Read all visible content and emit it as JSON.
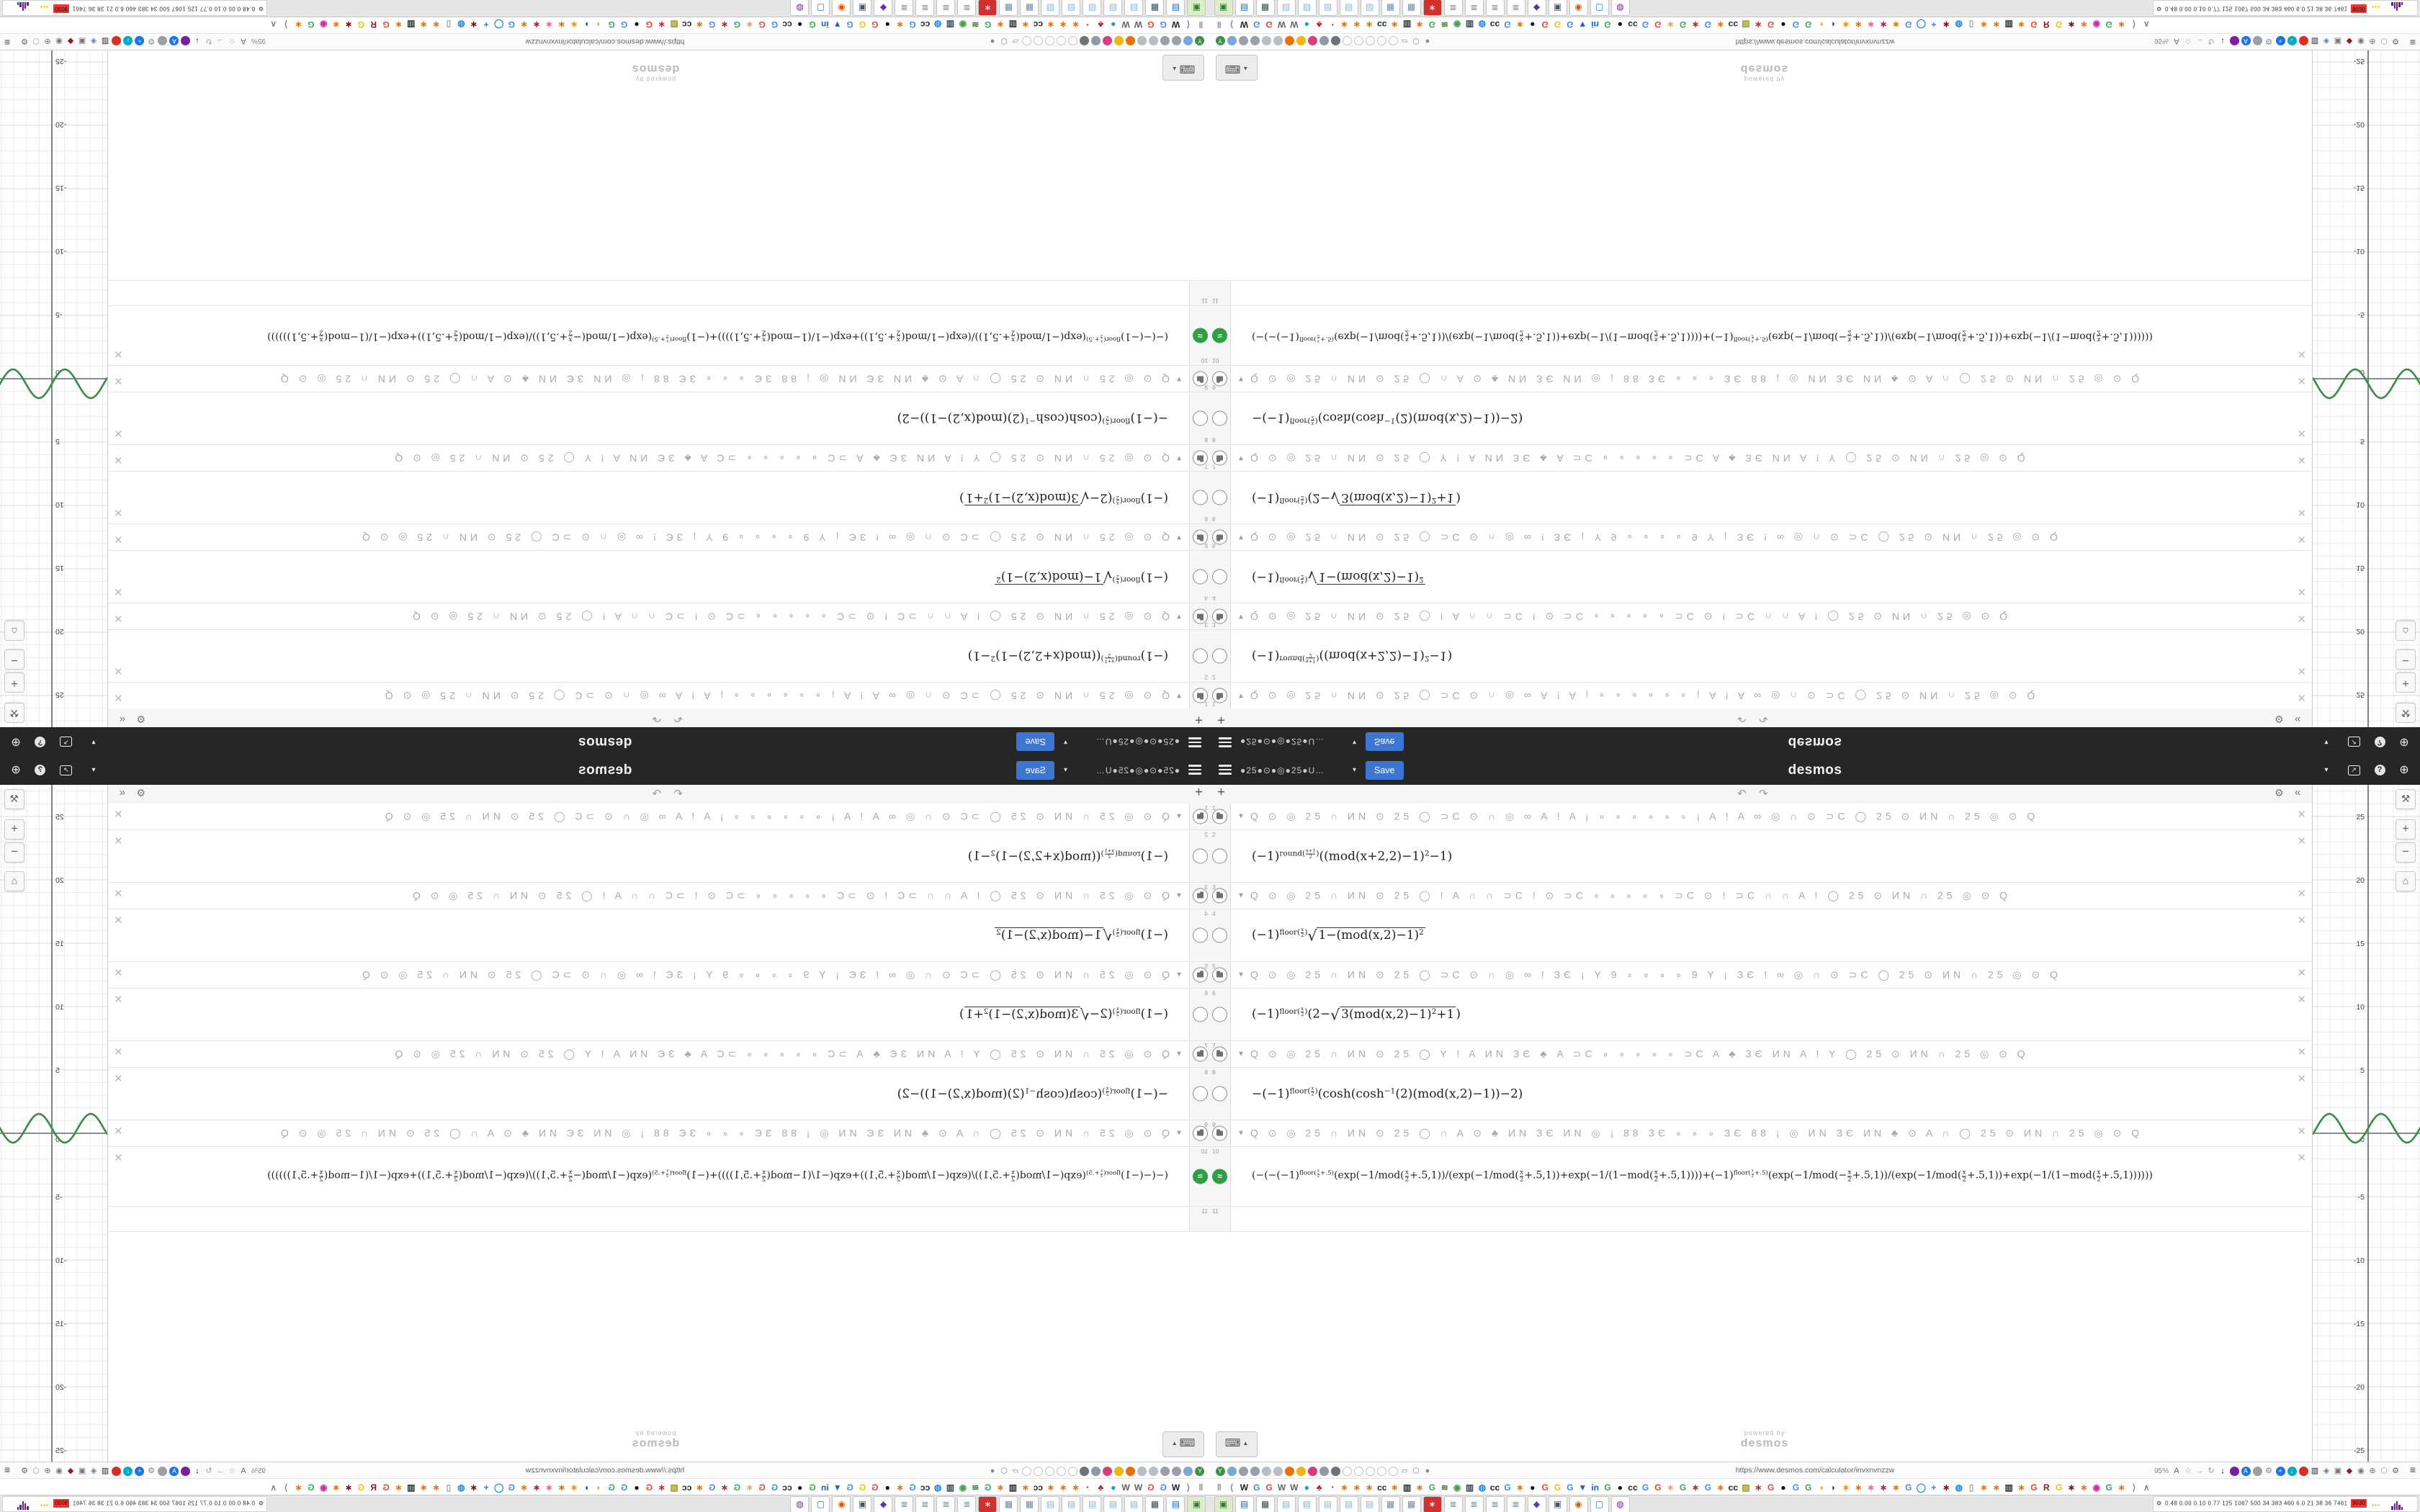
{
  "header": {
    "title": "●25●⊙●◎●25●U…",
    "save_label": "Save",
    "logo": "desmos",
    "caret": "▾",
    "share_glyph": "↗",
    "help_glyph": "?",
    "globe_glyph": "⊕"
  },
  "toolbar": {
    "add_label": "+",
    "undo_label": "↶",
    "redo_label": "↷",
    "gear_label": "⚙",
    "collapse_label": "«"
  },
  "rows": [
    {
      "n": "1",
      "type": "folder",
      "text": "Q ⊙ ◎ 25 ∩ ИN ⊙ 25 ◯ ⊃C ⊙ ∩ ◎ ∞ A ! A ¡ ∘ ∘ ∘ ∘ ∘ ∘ ¡ A ! A ∞ ◎ ∩ ⊙ ⊃C ◯ 25 ⊙ ИN ∩ 25 ◎ ⊙ Q"
    },
    {
      "n": "2",
      "type": "math",
      "tokens": [
        "(−1)",
        {
          "sup": [
            "round(",
            {
              "frac": [
                "x+1",
                "2"
              ]
            },
            ")"
          ]
        },
        "((mod(x+2,2)−1)",
        {
          "sup": [
            "2"
          ]
        },
        "−1)"
      ]
    },
    {
      "n": "3",
      "type": "folder",
      "text": "Q ⊙ ◎ 25 ∩ ИN ⊙ 25 ◯ ! A ∩ ∩ ⊃C ! ⊙ ⊃C ∘ ∘ ∘ ∘ ∘ ⊃C ⊙ ! ⊃C ∩ ∩ A ! ◯ 25 ⊙ ИN ∩ 25 ◎ ⊙ Q"
    },
    {
      "n": "4",
      "type": "math",
      "tokens": [
        "(−1)",
        {
          "sup": [
            "floor(",
            {
              "frac": [
                "x",
                "2"
              ]
            },
            ")"
          ]
        },
        {
          "sqrt": [
            "1−(mod(x,2)−1)",
            {
              "sup": [
                "2"
              ]
            }
          ]
        }
      ]
    },
    {
      "n": "5",
      "type": "folder",
      "text": "Q ⊙ ◎ 25 ∩ ИN ⊙ 25 ◯ ⊃C ⊙ ∩ ◎ ∞ ! ЗЄ ¡ Y 9 ∘ ∘ ∘ ∘ 9 Y ¡ ЗЄ ! ∞ ◎ ∩ ⊙ ⊃C ◯ 25 ⊙ ИN ∩ 25 ◎ ⊙ Q"
    },
    {
      "n": "6",
      "type": "math",
      "tokens": [
        "(−1)",
        {
          "sup": [
            "floor(",
            {
              "frac": [
                "x",
                "2"
              ]
            },
            ")"
          ]
        },
        "(2−",
        {
          "sqrt": [
            "3(mod(x,2)−1)",
            {
              "sup": [
                "2"
              ]
            },
            "+1"
          ]
        },
        ")"
      ]
    },
    {
      "n": "7",
      "type": "folder",
      "text": "Q ⊙ ◎ 25 ∩ ИN ⊙ 25 ◯ Y ! A ИN ЗЄ ♣ A ⊃C ∘ ∘ ∘ ∘ ∘ ⊃C A ♣ ЗЄ ИN A ! Y ◯ 25 ⊙ ИN ∩ 25 ◎ ⊙ Q"
    },
    {
      "n": "8",
      "type": "math",
      "tokens": [
        "−(−1)",
        {
          "sup": [
            "floor(",
            {
              "frac": [
                "x",
                "2"
              ]
            },
            ")"
          ]
        },
        "(cosh(cosh",
        {
          "sup": [
            "−1"
          ]
        },
        "(2)(mod(x,2)−1))−2)"
      ]
    },
    {
      "n": "9",
      "type": "folder",
      "text": "Q ⊙ ◎ 25 ∩ ИN ⊙ 25 ◯ ∩ A ⊙ ♣ ИN ЗЄ ИN ◎ ¡ 88 ЗЄ ∘ ∘ ∘ ЗЄ 88 ¡ ◎ ИN ЗЄ ИN ♣ ⊙ A ∩ ◯ 25 ⊙ ИN ∩ 25 ◎ ⊙ Q"
    },
    {
      "n": "10",
      "type": "math",
      "size": "lg",
      "icon": "wave",
      "wave_glyph": "≈",
      "tokens": [
        "(−(−(−1)",
        {
          "sup": [
            "floor(",
            {
              "frac": [
                "x",
                "2"
              ]
            },
            "+.5)"
          ]
        },
        "(exp(−1/mod(",
        {
          "frac": [
            "x",
            "2"
          ]
        },
        "+.5,1))/(exp(−1/mod(",
        {
          "frac": [
            "x",
            "2"
          ]
        },
        "+.5,1))+exp(−1/(1−mod(",
        {
          "frac": [
            "x",
            "2"
          ]
        },
        "+.5,1))))+(−1)",
        {
          "sup": [
            "floor(",
            {
              "frac": [
                "x",
                "2"
              ]
            },
            "+.5)"
          ]
        },
        "(exp(−1/mod(−",
        {
          "frac": [
            "x",
            "2"
          ]
        },
        "+.5,1))/(exp(−1/mod(",
        {
          "frac": [
            "x",
            "2"
          ]
        },
        "+.5,1))+exp(−1/(1−mod(",
        {
          "frac": [
            "x",
            "2"
          ]
        },
        "+.5,1))))))"
      ]
    },
    {
      "n": "11",
      "type": "empty"
    }
  ],
  "delete_glyph": "✕",
  "keypad": {
    "icon": "⌨",
    "caret": "▲"
  },
  "watermark": {
    "line1": "powered by",
    "line2": "desmos"
  },
  "graph": {
    "y_labels": [
      "25",
      "20",
      "15",
      "10",
      "5",
      "0",
      "-5",
      "-10",
      "-15",
      "-20",
      "-25"
    ],
    "curve_color": "#388c46",
    "buttons": {
      "wrench": "⚒",
      "zoom_in": "+",
      "zoom_out": "−",
      "home": "⌂"
    }
  },
  "browser": {
    "url": "https://www.desmos.com/calculator/invxnvnzzw",
    "zoom_label": "95%",
    "menu_glyph": "≡",
    "left_icons": [
      {
        "g": "Y",
        "c": "#3f8f4a"
      },
      {
        "g": "",
        "c": "#7aa9d8"
      },
      {
        "g": "",
        "c": "#9aa0a6"
      },
      {
        "g": "",
        "c": "#9aa0a6"
      },
      {
        "g": "",
        "c": "#b9bec4"
      },
      {
        "g": "",
        "c": "#b9bec4"
      },
      {
        "g": "",
        "c": "#e8710a"
      },
      {
        "g": "",
        "c": "#f2b60d"
      },
      {
        "g": "",
        "c": "#d93d7b"
      },
      {
        "g": "",
        "c": "#8f9aa6"
      },
      {
        "g": "",
        "c": "#6d7378"
      }
    ],
    "tab_placeholders": [
      "",
      "",
      "",
      "",
      ""
    ],
    "badges": [
      {
        "g": "▱",
        "c": "#8a8a8a"
      },
      {
        "g": "⬡",
        "c": "#8a8a8a"
      },
      {
        "g": "●",
        "c": "#8a8a8a"
      }
    ],
    "right_icons": [
      {
        "g": "A",
        "c": "#5f6368",
        "bg": "none"
      },
      {
        "g": "☆",
        "c": "#9aa0a6",
        "bg": "none"
      },
      {
        "g": "→",
        "c": "#9aa0a6",
        "bg": "none"
      },
      {
        "g": "↻",
        "c": "#9aa0a6",
        "bg": "none"
      },
      {
        "g": "↓",
        "c": "#202124",
        "bg": "none"
      },
      {
        "g": "",
        "c": "#fff",
        "bg": "#7b1fa2"
      },
      {
        "g": "A",
        "c": "#fff",
        "bg": "#1a73e8"
      },
      {
        "g": "",
        "c": "#fff",
        "bg": "#9aa0a6"
      },
      {
        "g": "⚙",
        "c": "#80868b",
        "bg": "none"
      },
      {
        "g": "+",
        "c": "#fff",
        "bg": "#1a73e8"
      },
      {
        "g": "↓",
        "c": "#fff",
        "bg": "#00acc1"
      },
      {
        "g": "",
        "c": "#fff",
        "bg": "#d93025"
      },
      {
        "g": "▥",
        "c": "#202124",
        "bg": "none"
      },
      {
        "g": "◈",
        "c": "#5c7fa3",
        "bg": "none"
      },
      {
        "g": "▣",
        "c": "#757575",
        "bg": "none"
      },
      {
        "g": "◆",
        "c": "#8e1b1b",
        "bg": "none"
      },
      {
        "g": "◉",
        "c": "#757575",
        "bg": "none"
      },
      {
        "g": "⊕",
        "c": "#757575",
        "bg": "none"
      },
      {
        "g": "⬡",
        "c": "#9aa0a6",
        "bg": "none"
      },
      {
        "g": "⚙",
        "c": "#5f6368",
        "bg": "none"
      }
    ]
  },
  "bookmarks": [
    {
      "g": "‖",
      "c": "#80868b"
    },
    {
      "g": "⟨",
      "c": "#80868b"
    },
    {
      "g": "W",
      "c": "#202124"
    },
    {
      "g": "G",
      "c": "#4285f4"
    },
    {
      "g": "G",
      "c": "#ea4335"
    },
    {
      "g": "W",
      "c": "#5f6368"
    },
    {
      "g": "W",
      "c": "#5f6368"
    },
    {
      "g": "●",
      "c": "#00acc1"
    },
    {
      "g": "♣",
      "c": "#b3261e"
    },
    {
      "g": "◔",
      "c": "#5c6bc0"
    },
    {
      "g": "∗",
      "c": "#e8710a"
    },
    {
      "g": "∗",
      "c": "#e8710a"
    },
    {
      "g": "∗",
      "c": "#e8710a"
    },
    {
      "g": "cc",
      "c": "#202124"
    },
    {
      "g": "∗",
      "c": "#e8710a"
    },
    {
      "g": "▥",
      "c": "#263238"
    },
    {
      "g": "∗",
      "c": "#e8710a"
    },
    {
      "g": "G",
      "c": "#34a853"
    },
    {
      "g": "≋",
      "c": "#2e7d32"
    },
    {
      "g": "◉",
      "c": "#43a047"
    },
    {
      "g": "▥",
      "c": "#37474f"
    },
    {
      "g": "◍",
      "c": "#1e88e5"
    },
    {
      "g": "cc",
      "c": "#202124"
    },
    {
      "g": "G",
      "c": "#4285f4"
    },
    {
      "g": "∗",
      "c": "#e8710a"
    },
    {
      "g": "●",
      "c": "#111111"
    },
    {
      "g": "G",
      "c": "#ea4335"
    },
    {
      "g": "G",
      "c": "#fbbc05"
    },
    {
      "g": "G",
      "c": "#4285f4"
    },
    {
      "g": "▼",
      "c": "#1565c0"
    },
    {
      "g": "in",
      "c": "#0a66c2"
    },
    {
      "g": "G",
      "c": "#34a853"
    },
    {
      "g": "●",
      "c": "#111111"
    },
    {
      "g": "cc",
      "c": "#202124"
    },
    {
      "g": "G",
      "c": "#4285f4"
    },
    {
      "g": "G",
      "c": "#ea4335"
    },
    {
      "g": "∗",
      "c": "#d7a86e"
    },
    {
      "g": "G",
      "c": "#34a853"
    },
    {
      "g": "∗",
      "c": "#b3261e"
    },
    {
      "g": "G",
      "c": "#4285f4"
    },
    {
      "g": "∗",
      "c": "#e8710a"
    },
    {
      "g": "cc",
      "c": "#202124"
    },
    {
      "g": "▨",
      "c": "#9e9d24"
    },
    {
      "g": "∗",
      "c": "#c62828"
    },
    {
      "g": "G",
      "c": "#ea4335"
    },
    {
      "g": "●",
      "c": "#111111"
    },
    {
      "g": "G",
      "c": "#4285f4"
    },
    {
      "g": "G",
      "c": "#34a853"
    },
    {
      "g": "◑",
      "c": "#f9a825"
    },
    {
      "g": "◗",
      "c": "#283593"
    },
    {
      "g": "∗",
      "c": "#ff8f00"
    },
    {
      "g": "∗",
      "c": "#ef6c00"
    },
    {
      "g": "∗",
      "c": "#f06292"
    },
    {
      "g": "∗",
      "c": "#ad1457"
    },
    {
      "g": "∗",
      "c": "#e8710a"
    },
    {
      "g": "G",
      "c": "#4285f4"
    },
    {
      "g": "◯",
      "c": "#1e88e5"
    },
    {
      "g": "+",
      "c": "#1e88e5"
    },
    {
      "g": "∗",
      "c": "#8e0000"
    },
    {
      "g": "◍",
      "c": "#1e88e5"
    },
    {
      "g": "▯",
      "c": "#90a4ae"
    },
    {
      "g": "∗",
      "c": "#e8710a"
    },
    {
      "g": "∗",
      "c": "#e8710a"
    },
    {
      "g": "▥",
      "c": "#263238"
    },
    {
      "g": "∗",
      "c": "#e8710a"
    },
    {
      "g": "G",
      "c": "#ea4335"
    },
    {
      "g": "R",
      "c": "#8e1b1b"
    },
    {
      "g": "G",
      "c": "#fbbc05"
    },
    {
      "g": "∗",
      "c": "#8e0000"
    },
    {
      "g": "∗",
      "c": "#e8710a"
    },
    {
      "g": "◉",
      "c": "#d6249f"
    },
    {
      "g": "G",
      "c": "#34a853"
    },
    {
      "g": "∗",
      "c": "#e8710a"
    },
    {
      "g": "⟩",
      "c": "#80868b"
    },
    {
      "g": "∧",
      "c": "#80868b"
    }
  ],
  "taskbar": {
    "apps": [
      {
        "g": "▣",
        "c": "#2e7d32",
        "bg": "#dcedc8"
      },
      {
        "g": "▤",
        "c": "#1565c0"
      },
      {
        "g": "▦",
        "c": "#37474f"
      },
      {
        "g": "▤",
        "c": "#81b6d9"
      },
      {
        "g": "▤",
        "c": "#81b6d9"
      },
      {
        "g": "▤",
        "c": "#81b6d9"
      },
      {
        "g": "▤",
        "c": "#81b6d9"
      },
      {
        "g": "▤",
        "c": "#81b6d9"
      },
      {
        "g": "▦",
        "c": "#6889a8"
      },
      {
        "g": "▦",
        "c": "#6889a8"
      },
      {
        "g": "∗",
        "c": "#ffffff",
        "bg": "#d32f2f"
      },
      {
        "g": "≣",
        "c": "#78909c"
      },
      {
        "g": "≣",
        "c": "#78909c"
      },
      {
        "g": "≣",
        "c": "#78909c"
      },
      {
        "g": "≣",
        "c": "#78909c"
      },
      {
        "g": "◆",
        "c": "#5e35b1"
      },
      {
        "g": "▣",
        "c": "#455a64"
      },
      {
        "g": "◉",
        "c": "#e65100"
      },
      {
        "g": "▢",
        "c": "#1976d2"
      },
      {
        "g": "◍",
        "c": "#7b1fa2"
      }
    ],
    "monitor_glyph": "⚙",
    "stats": "0.48 0.00 0.10 0.77 125 1067 500 34 383 460 6.0 21 38 36 7461",
    "badge": "9030"
  }
}
